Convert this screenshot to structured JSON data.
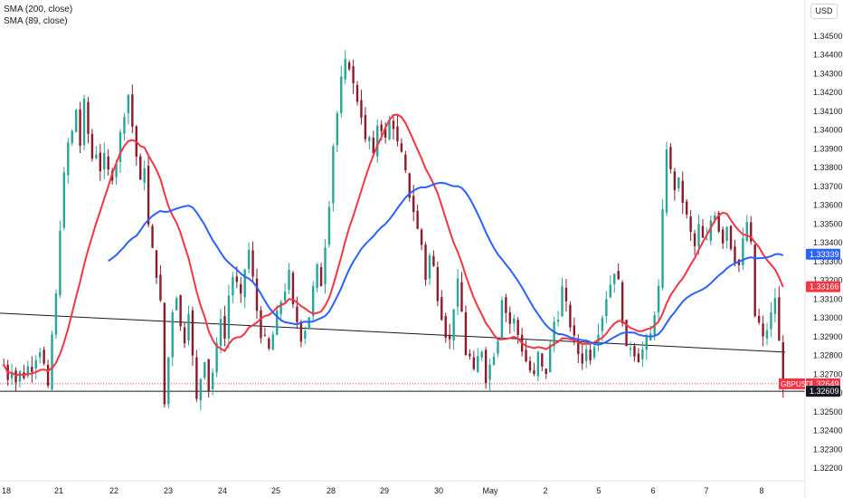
{
  "legend": {
    "sma200": "SMA (200, close)",
    "sma89": "SMA (89, close)"
  },
  "currency_button": "USD",
  "colors": {
    "up": "#26a69a",
    "down": "#8b1a2a",
    "candle_body": "#1b1b1b",
    "sma200": "#2962ff",
    "sma89": "#f23645",
    "trendline": "#131722",
    "symbol_badge": "#f23645"
  },
  "chart_data": {
    "type": "candlestick",
    "symbol": "GBPUSD",
    "price_axis": {
      "ticks": [
        "1.34500",
        "1.34400",
        "1.34300",
        "1.34200",
        "1.34100",
        "1.34000",
        "1.33900",
        "1.33800",
        "1.33700",
        "1.33600",
        "1.33500",
        "1.33400",
        "1.33300",
        "1.33200",
        "1.33100",
        "1.33000",
        "1.32900",
        "1.32800",
        "1.32700",
        "1.32600",
        "1.32500",
        "1.32400",
        "1.32300",
        "1.32200"
      ],
      "ylim": [
        1.3215,
        1.3455
      ]
    },
    "time_axis": {
      "labels": [
        "18",
        "21",
        "22",
        "23",
        "24",
        "25",
        "28",
        "29",
        "30",
        "May",
        "2",
        "5",
        "6",
        "7",
        "8"
      ]
    },
    "badges": [
      {
        "label": "",
        "value": "1.33339",
        "color": "#2962ff"
      },
      {
        "label": "",
        "value": "1.33166",
        "color": "#f23645"
      },
      {
        "label": "GBPUSD",
        "value": "1.32649",
        "color": "#f23645"
      },
      {
        "label": "",
        "value": "1.32609",
        "color": "#131722"
      }
    ],
    "horizontal_level": 1.32609,
    "trendline": {
      "start": 1.33025,
      "end": 1.32818
    },
    "price_path": [
      1.3275,
      1.3268,
      1.3272,
      1.3266,
      1.3271,
      1.3269,
      1.3274,
      1.3273,
      1.3279,
      1.3283,
      1.3275,
      1.3262,
      1.3291,
      1.3312,
      1.3348,
      1.3376,
      1.3393,
      1.3399,
      1.3411,
      1.3392,
      1.3415,
      1.3398,
      1.3385,
      1.3388,
      1.3379,
      1.3386,
      1.3378,
      1.3375,
      1.3383,
      1.3398,
      1.3409,
      1.3419,
      1.3402,
      1.3386,
      1.3372,
      1.3381,
      1.3349,
      1.3336,
      1.3323,
      1.3308,
      1.3254,
      1.3279,
      1.3304,
      1.3312,
      1.3295,
      1.3288,
      1.3304,
      1.3279,
      1.3256,
      1.3268,
      1.3278,
      1.3262,
      1.3271,
      1.3285,
      1.3301,
      1.3289,
      1.3312,
      1.3322,
      1.3318,
      1.3311,
      1.3326,
      1.3336,
      1.3321,
      1.3304,
      1.3291,
      1.3289,
      1.3283,
      1.3291,
      1.3302,
      1.3309,
      1.3315,
      1.3324,
      1.3306,
      1.3298,
      1.3289,
      1.3294,
      1.3301,
      1.3316,
      1.3327,
      1.3318,
      1.3339,
      1.3361,
      1.3392,
      1.3409,
      1.3427,
      1.3436,
      1.3434,
      1.3424,
      1.3416,
      1.3408,
      1.3394,
      1.3396,
      1.3386,
      1.3403,
      1.3401,
      1.3395,
      1.3405,
      1.3402,
      1.3393,
      1.3387,
      1.3377,
      1.3365,
      1.3357,
      1.3347,
      1.3339,
      1.3321,
      1.3333,
      1.3327,
      1.3311,
      1.3301,
      1.3291,
      1.3288,
      1.3306,
      1.3319,
      1.3303,
      1.3281,
      1.3279,
      1.3271,
      1.3279,
      1.3283,
      1.3267,
      1.3275,
      1.3281,
      1.3289,
      1.3311,
      1.3303,
      1.3297,
      1.3299,
      1.3291,
      1.3283,
      1.3277,
      1.3272,
      1.3269,
      1.3281,
      1.3273,
      1.3271,
      1.3285,
      1.3298,
      1.3301,
      1.3316,
      1.3307,
      1.3296,
      1.3289,
      1.3281,
      1.3277,
      1.3283,
      1.3279,
      1.3286,
      1.3293,
      1.3301,
      1.3311,
      1.3318,
      1.3325,
      1.3319,
      1.3299,
      1.3283,
      1.3285,
      1.3281,
      1.3278,
      1.3283,
      1.3288,
      1.3291,
      1.3303,
      1.3316,
      1.3356,
      1.3391,
      1.3378,
      1.3369,
      1.3373,
      1.3362,
      1.3354,
      1.3345,
      1.3338,
      1.3349,
      1.3342,
      1.3341,
      1.3352,
      1.3356,
      1.3347,
      1.3341,
      1.3349,
      1.3338,
      1.3331,
      1.3328,
      1.3341,
      1.3351,
      1.3339,
      1.3301,
      1.3297,
      1.3289,
      1.3294,
      1.3302,
      1.3311,
      1.3287,
      1.3265
    ]
  }
}
